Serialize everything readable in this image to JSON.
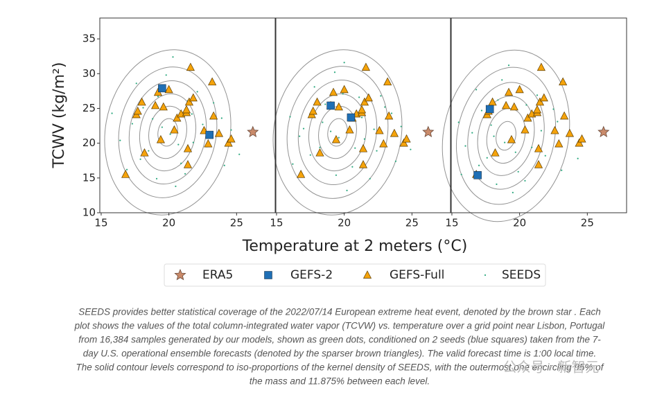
{
  "figure": {
    "x_label": "Temperature at 2 meters (°C)",
    "y_label": "TCWV (kg/m²)",
    "caption": [
      "SEEDS provides better statistical coverage of the 2022/07/14 European extreme heat event, denoted by the brown star . Each",
      "plot shows the values of the total column-integrated water vapor (TCVW) vs. temperature over a grid point near Lisbon, Portugal",
      "from 16,384 samples generated by our models, shown as green dots, conditioned on 2 seeds (blue squares) taken from the 7-",
      "day U.S. operational ensemble forecasts (denoted by the sparser brown triangles). The valid forecast time is 1:00 local time.",
      "The solid contour levels correspond to iso-proportions of the kernel density of SEEDS, with the outermost one encircling 95% of",
      "the mass and 11.875% between each level."
    ],
    "watermark": "公众号 · 新智元"
  },
  "chart_data": [
    {
      "type": "scatter",
      "xlim": [
        14.9,
        27.9
      ],
      "ylim": [
        10,
        38
      ],
      "xticks": [
        15,
        20,
        25
      ],
      "yticks": [
        10,
        15,
        20,
        25,
        30,
        35
      ],
      "series": [
        {
          "name": "ERA5",
          "marker": "star",
          "color": "#c98a6a",
          "x": [
            26.2
          ],
          "y": [
            21.6
          ]
        },
        {
          "name": "GEFS-2",
          "marker": "square",
          "color": "#1f6fb5",
          "x": [
            19.5,
            23.0
          ],
          "y": [
            27.9,
            21.2
          ]
        },
        {
          "name": "GEFS-Full",
          "marker": "triangle",
          "color": "#f5a30b",
          "x": [
            16.8,
            17.6,
            17.7,
            18.0,
            18.2,
            19.0,
            19.4,
            19.6,
            19.2,
            20.0,
            20.4,
            20.6,
            20.9,
            21.3,
            21.3,
            21.5,
            21.8,
            21.4,
            21.4,
            21.6,
            22.6,
            23.2,
            23.3,
            22.9,
            23.7,
            24.4,
            24.6
          ],
          "y": [
            15.5,
            24.1,
            24.6,
            25.9,
            18.6,
            25.4,
            20.5,
            25.2,
            27.3,
            27.7,
            21.9,
            23.6,
            24.2,
            24.4,
            24.8,
            25.9,
            26.5,
            19.2,
            16.9,
            30.9,
            21.8,
            28.8,
            23.9,
            19.9,
            21.4,
            20.0,
            20.6
          ]
        },
        {
          "name": "SEEDS",
          "marker": "dot",
          "color": "#2ca87f",
          "x": [
            20.1,
            18.5,
            21.7,
            19.2,
            22.8,
            17.3,
            20.9,
            23.9,
            16.4,
            19.8,
            21.2,
            18.1,
            24.6,
            20.5,
            17.9,
            22.1,
            19.5,
            21.8,
            16.9,
            23.3,
            20.3,
            18.8,
            25.2,
            19.1,
            22.5,
            17.6,
            20.7,
            21.4,
            15.8,
            24.1
          ],
          "y": [
            21.3,
            18.9,
            24.2,
            26.7,
            19.5,
            22.8,
            17.1,
            23.6,
            20.4,
            29.8,
            15.6,
            25.1,
            21.9,
            13.8,
            17.7,
            27.4,
            22.3,
            20.1,
            16.2,
            25.8,
            32.4,
            23.5,
            18.4,
            14.9,
            22.7,
            28.6,
            19.8,
            26.1,
            24.3,
            16.8
          ]
        }
      ]
    },
    {
      "type": "scatter",
      "xlim": [
        14.9,
        27.9
      ],
      "ylim": [
        10,
        38
      ],
      "xticks": [
        15,
        20,
        25
      ],
      "series": [
        {
          "marker": "star",
          "color": "#c98a6a",
          "x": [
            26.2
          ],
          "y": [
            21.6
          ]
        },
        {
          "marker": "square",
          "color": "#1f6fb5",
          "x": [
            19.0,
            20.5
          ],
          "y": [
            25.4,
            23.7
          ]
        },
        {
          "marker": "triangle",
          "color": "#f5a30b",
          "x": [
            16.8,
            17.6,
            17.7,
            18.0,
            18.2,
            19.0,
            19.4,
            19.6,
            19.2,
            20.0,
            20.4,
            20.6,
            20.9,
            21.3,
            21.3,
            21.5,
            21.8,
            21.4,
            21.4,
            21.6,
            22.6,
            23.2,
            23.3,
            22.9,
            23.7,
            24.4,
            24.6
          ],
          "y": [
            15.5,
            24.1,
            24.6,
            25.9,
            18.6,
            25.4,
            20.5,
            25.2,
            27.3,
            27.7,
            21.9,
            23.6,
            24.2,
            24.4,
            24.8,
            25.9,
            26.5,
            19.2,
            16.9,
            30.9,
            21.8,
            28.8,
            23.9,
            19.9,
            21.4,
            20.0,
            20.6
          ]
        },
        {
          "marker": "dot",
          "color": "#2ca87f",
          "x": [
            19.6,
            18.2,
            21.3,
            19.9,
            22.4,
            17.0,
            20.6,
            23.5,
            16.7,
            19.3,
            21.9,
            18.6,
            24.2,
            20.2,
            17.5,
            22.7,
            19.0,
            21.5,
            16.2,
            23.0,
            20.0,
            18.4,
            24.9,
            19.4,
            22.2,
            17.8,
            20.8,
            21.1,
            16.0,
            23.8
          ],
          "y": [
            20.8,
            19.4,
            23.7,
            27.1,
            18.9,
            22.1,
            16.6,
            24.3,
            21.0,
            30.2,
            14.9,
            25.6,
            22.4,
            13.2,
            18.3,
            26.8,
            21.7,
            20.6,
            17.0,
            25.2,
            31.6,
            23.0,
            19.1,
            15.4,
            22.0,
            28.1,
            19.3,
            26.6,
            23.8,
            17.4
          ]
        }
      ]
    },
    {
      "type": "scatter",
      "xlim": [
        14.9,
        27.9
      ],
      "ylim": [
        10,
        38
      ],
      "xticks": [
        15,
        20,
        25
      ],
      "series": [
        {
          "marker": "star",
          "color": "#c98a6a",
          "x": [
            26.2
          ],
          "y": [
            21.6
          ]
        },
        {
          "marker": "square",
          "color": "#1f6fb5",
          "x": [
            16.9,
            17.8
          ],
          "y": [
            15.4,
            24.9
          ]
        },
        {
          "marker": "triangle",
          "color": "#f5a30b",
          "x": [
            16.8,
            17.6,
            17.7,
            18.0,
            18.2,
            19.0,
            19.4,
            19.6,
            19.2,
            20.0,
            20.4,
            20.6,
            20.9,
            21.3,
            21.3,
            21.5,
            21.8,
            21.4,
            21.4,
            21.6,
            22.6,
            23.2,
            23.3,
            22.9,
            23.7,
            24.4,
            24.6
          ],
          "y": [
            15.5,
            24.1,
            24.6,
            25.9,
            18.6,
            25.4,
            20.5,
            25.2,
            27.3,
            27.7,
            21.9,
            23.6,
            24.2,
            24.4,
            24.8,
            25.9,
            26.5,
            19.2,
            16.9,
            30.9,
            21.8,
            28.8,
            23.9,
            19.9,
            21.4,
            20.0,
            20.6
          ]
        },
        {
          "marker": "dot",
          "color": "#2ca87f",
          "x": [
            18.9,
            17.6,
            20.8,
            18.4,
            21.9,
            16.5,
            19.9,
            22.8,
            16.0,
            18.7,
            20.4,
            17.2,
            23.6,
            19.5,
            17.0,
            21.3,
            18.1,
            20.9,
            15.7,
            22.5,
            19.2,
            17.9,
            24.3,
            18.3,
            21.6,
            16.8,
            19.7,
            20.5,
            15.5,
            23.1
          ],
          "y": [
            20.1,
            17.9,
            23.4,
            26.2,
            18.2,
            21.5,
            15.9,
            23.1,
            19.6,
            29.1,
            14.6,
            24.7,
            21.2,
            12.9,
            16.8,
            26.9,
            21.0,
            19.4,
            15.5,
            24.9,
            31.2,
            22.6,
            17.8,
            14.1,
            21.8,
            27.7,
            18.7,
            25.5,
            23.0,
            16.1
          ]
        }
      ]
    }
  ]
}
